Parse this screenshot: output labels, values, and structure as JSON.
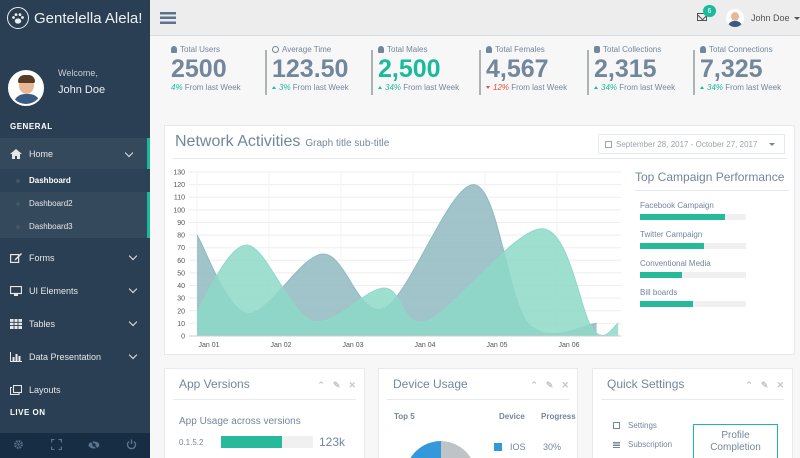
{
  "brand": {
    "title": "Gentelella Alela!"
  },
  "profile": {
    "welcome": "Welcome,",
    "name": "John Doe"
  },
  "sidebar": {
    "section_general": "GENERAL",
    "section_live": "LIVE ON",
    "items": [
      {
        "label": "Home",
        "icon": "home-icon"
      },
      {
        "label": "Forms",
        "icon": "edit-icon"
      },
      {
        "label": "UI Elements",
        "icon": "desktop-icon"
      },
      {
        "label": "Tables",
        "icon": "table-icon"
      },
      {
        "label": "Data Presentation",
        "icon": "bar-chart-icon"
      },
      {
        "label": "Layouts",
        "icon": "clone-icon"
      }
    ],
    "home_children": [
      "Dashboard",
      "Dashboard2",
      "Dashboard3"
    ],
    "footer_icons": [
      "gear-icon",
      "fullscreen-icon",
      "eye-slash-icon",
      "power-off-icon"
    ]
  },
  "topnav": {
    "mail_count": "6",
    "user_name": "John Doe"
  },
  "tiles": [
    {
      "label": "Total Users",
      "value": "2500",
      "pct": "4%",
      "suffix": "From last Week",
      "trend": "none",
      "highlight": false
    },
    {
      "label": "Average Time",
      "value": "123.50",
      "pct": "3%",
      "suffix": "From last Week",
      "trend": "up",
      "highlight": false
    },
    {
      "label": "Total Males",
      "value": "2,500",
      "pct": "34%",
      "suffix": "From last Week",
      "trend": "up",
      "highlight": true
    },
    {
      "label": "Total Females",
      "value": "4,567",
      "pct": "12%",
      "suffix": "From last Week",
      "trend": "down",
      "highlight": false
    },
    {
      "label": "Total Collections",
      "value": "2,315",
      "pct": "34%",
      "suffix": "From last Week",
      "trend": "up",
      "highlight": false
    },
    {
      "label": "Total Connections",
      "value": "7,325",
      "pct": "34%",
      "suffix": "From last Week",
      "trend": "up",
      "highlight": false
    }
  ],
  "network": {
    "title": "Network Activities",
    "subtitle": "Graph title sub-title",
    "date_range": "September 28, 2017 - October 27, 2017"
  },
  "chart_data": {
    "type": "area",
    "x": [
      "Jan 01",
      "Jan 02",
      "Jan 03",
      "Jan 04",
      "Jan 05",
      "Jan 06"
    ],
    "ylim": [
      0,
      130
    ],
    "y_ticks": [
      0,
      10,
      20,
      30,
      40,
      50,
      60,
      70,
      80,
      90,
      100,
      110,
      120,
      130
    ],
    "grid": true,
    "series": [
      {
        "color": "#8FBAC0",
        "points": [
          [
            0.0,
            80
          ],
          [
            0.7,
            18
          ],
          [
            1.75,
            65
          ],
          [
            2.6,
            22
          ],
          [
            3.85,
            120
          ],
          [
            4.6,
            10
          ],
          [
            5.55,
            10
          ]
        ]
      },
      {
        "color": "#8DD9C8",
        "points": [
          [
            0.0,
            20
          ],
          [
            0.7,
            72
          ],
          [
            1.6,
            12
          ],
          [
            2.6,
            38
          ],
          [
            3.2,
            12
          ],
          [
            4.8,
            85
          ],
          [
            5.5,
            5
          ],
          [
            5.85,
            10
          ]
        ]
      }
    ]
  },
  "campaign": {
    "title": "Top Campaign Performance",
    "items": [
      {
        "label": "Facebook Campaign",
        "pct": 80
      },
      {
        "label": "Twitter Campaign",
        "pct": 60
      },
      {
        "label": "Conventional Media",
        "pct": 40
      },
      {
        "label": "Bill boards",
        "pct": 50
      }
    ]
  },
  "app_versions": {
    "title": "App Versions",
    "subtitle": "App Usage across versions",
    "rows": [
      {
        "version": "0.1.5.2",
        "pct": 66,
        "count": "123k"
      }
    ]
  },
  "device_usage": {
    "title": "Device Usage",
    "headers": {
      "top": "Top 5",
      "device": "Device",
      "progress": "Progress"
    },
    "rows": [
      {
        "device": "IOS",
        "progress": "30%",
        "color": "#3498DB"
      }
    ]
  },
  "quick_settings": {
    "title": "Quick Settings",
    "items": [
      "Settings",
      "Subscription"
    ],
    "button": "Profile Completion"
  },
  "colors": {
    "accent": "#1ABB9C",
    "sidebar": "#2A3F54",
    "text": "#73879C",
    "down": "#E74C3C"
  }
}
